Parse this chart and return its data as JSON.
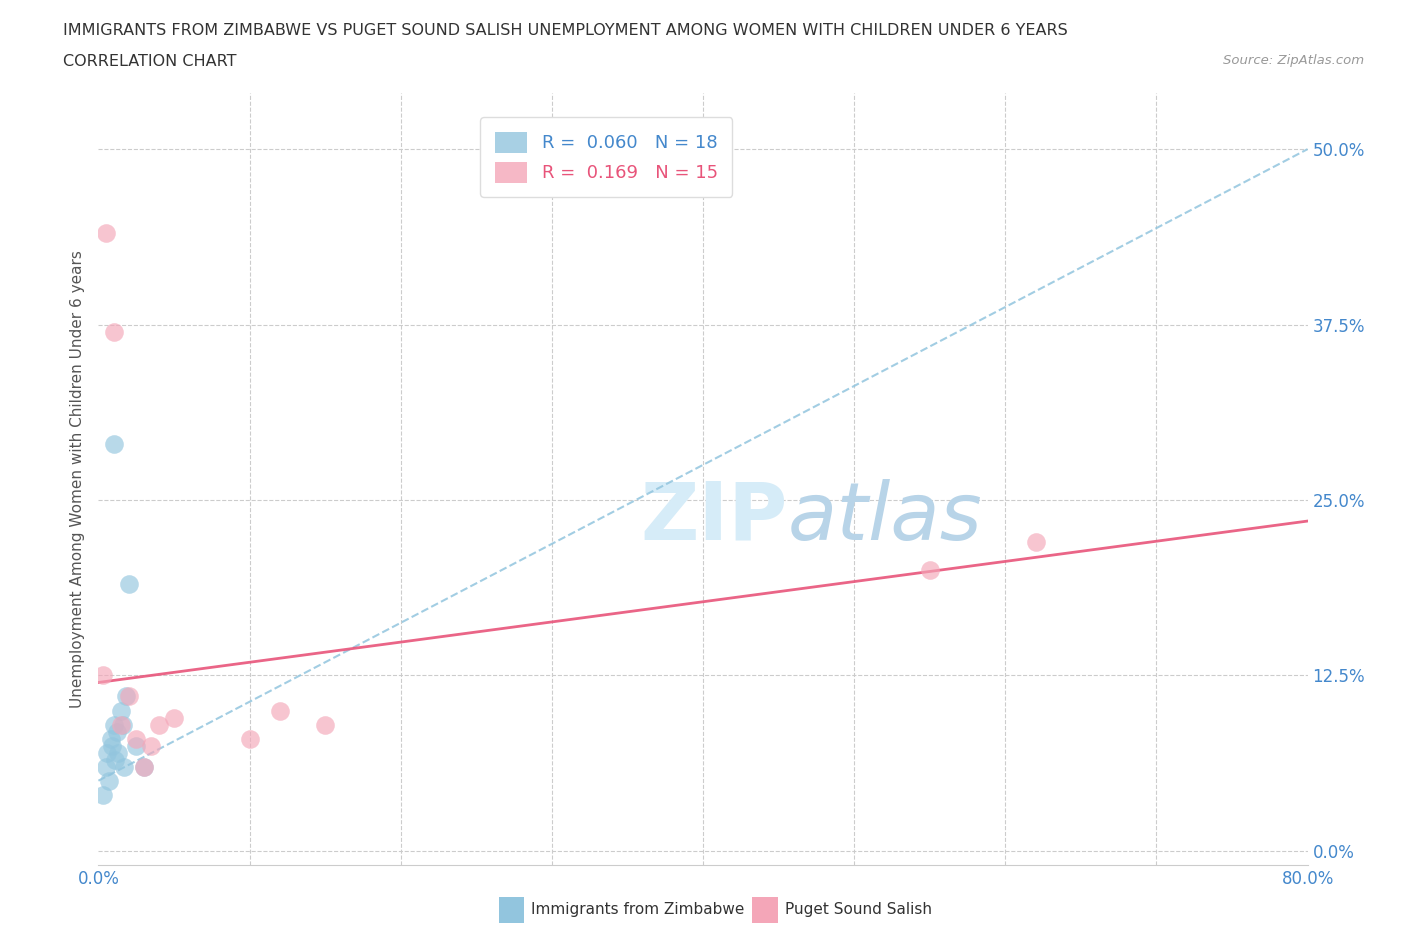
{
  "title_line1": "IMMIGRANTS FROM ZIMBABWE VS PUGET SOUND SALISH UNEMPLOYMENT AMONG WOMEN WITH CHILDREN UNDER 6 YEARS",
  "title_line2": "CORRELATION CHART",
  "source_text": "Source: ZipAtlas.com",
  "xlabel_bottom_left": "0.0%",
  "xlabel_bottom_right": "80.0%",
  "ylabel": "Unemployment Among Women with Children Under 6 years",
  "ytick_values": [
    0.0,
    12.5,
    25.0,
    37.5,
    50.0
  ],
  "xmin": 0,
  "xmax": 80,
  "ymin": -1,
  "ymax": 54,
  "color_blue": "#92c5de",
  "color_pink": "#f4a6b8",
  "color_blue_line": "#92c5de",
  "color_pink_line": "#e8547a",
  "watermark_color": "#d6ecf8",
  "blue_scatter_x": [
    0.3,
    0.5,
    0.6,
    0.7,
    0.8,
    0.9,
    1.0,
    1.1,
    1.2,
    1.3,
    1.5,
    1.6,
    1.7,
    1.8,
    2.0,
    2.5,
    3.0,
    1.0
  ],
  "blue_scatter_y": [
    4.0,
    6.0,
    7.0,
    5.0,
    8.0,
    7.5,
    9.0,
    6.5,
    8.5,
    7.0,
    10.0,
    9.0,
    6.0,
    11.0,
    19.0,
    7.5,
    6.0,
    29.0
  ],
  "pink_scatter_x": [
    0.3,
    0.5,
    1.0,
    1.5,
    2.0,
    2.5,
    3.0,
    3.5,
    4.0,
    5.0,
    10.0,
    12.0,
    15.0,
    55.0,
    62.0
  ],
  "pink_scatter_y": [
    12.5,
    44.0,
    37.0,
    9.0,
    11.0,
    8.0,
    6.0,
    7.5,
    9.0,
    9.5,
    8.0,
    10.0,
    9.0,
    20.0,
    22.0
  ],
  "blue_trendline_y0": 5.0,
  "blue_trendline_y1": 50.0,
  "pink_trendline_y0": 12.0,
  "pink_trendline_y1": 23.5
}
